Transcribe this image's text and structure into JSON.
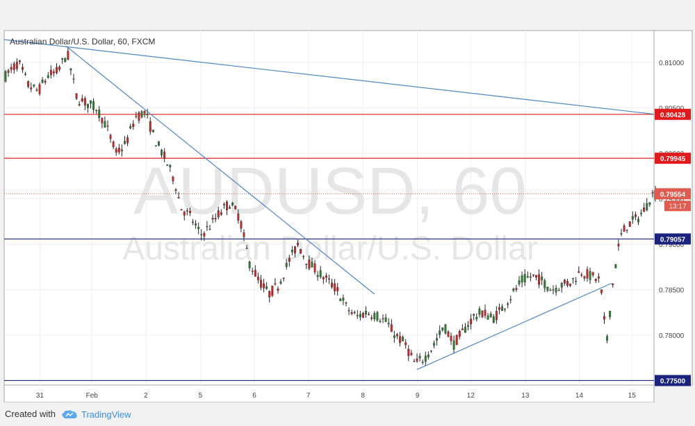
{
  "chart_data": {
    "type": "candlestick",
    "title": "Australian Dollar/U.S. Dollar, 60, FXCM",
    "watermark": {
      "symbol": "AUDUSD, 60",
      "name": "Australian Dollar/U.S. Dollar"
    },
    "x_tick_labels": [
      "31",
      "Feb",
      "2",
      "5",
      "6",
      "7",
      "8",
      "9",
      "12",
      "13",
      "14",
      "15"
    ],
    "y_tick_labels": [
      "0.81000",
      "0.80500",
      "0.80000",
      "0.79500",
      "0.79000",
      "0.78500",
      "0.78000",
      "0.77500"
    ],
    "ylim": [
      0.7745,
      0.8135
    ],
    "horizontal_levels": [
      {
        "value": 0.80428,
        "label": "0.80428",
        "color": "#e31a1c"
      },
      {
        "value": 0.79945,
        "label": "0.79945",
        "color": "#e31a1c"
      },
      {
        "value": 0.79057,
        "label": "0.79057",
        "color": "#1a237e"
      },
      {
        "value": 0.775,
        "label": "0.77500",
        "color": "#1a237e"
      }
    ],
    "current_price": {
      "value": 0.79554,
      "label": "0.79554",
      "countdown": "13:17",
      "color": "#e05a4e"
    },
    "trendlines": [
      {
        "from": [
          0,
          0.8125
        ],
        "to": [
          1,
          0.8043
        ]
      },
      {
        "from": [
          0.095,
          0.8118
        ],
        "to": [
          0.57,
          0.7845
        ]
      },
      {
        "from": [
          0.635,
          0.7762
        ],
        "to": [
          0.935,
          0.7857
        ]
      }
    ],
    "price_path": [
      [
        0.0,
        0.8085
      ],
      [
        0.02,
        0.81
      ],
      [
        0.035,
        0.8075
      ],
      [
        0.05,
        0.8068
      ],
      [
        0.065,
        0.8085
      ],
      [
        0.08,
        0.809
      ],
      [
        0.095,
        0.811
      ],
      [
        0.11,
        0.806
      ],
      [
        0.125,
        0.8055
      ],
      [
        0.14,
        0.805
      ],
      [
        0.155,
        0.803
      ],
      [
        0.17,
        0.8
      ],
      [
        0.185,
        0.801
      ],
      [
        0.2,
        0.804
      ],
      [
        0.215,
        0.8045
      ],
      [
        0.23,
        0.8015
      ],
      [
        0.245,
        0.7995
      ],
      [
        0.26,
        0.797
      ],
      [
        0.27,
        0.794
      ],
      [
        0.285,
        0.793
      ],
      [
        0.3,
        0.791
      ],
      [
        0.315,
        0.792
      ],
      [
        0.33,
        0.7935
      ],
      [
        0.345,
        0.7945
      ],
      [
        0.36,
        0.793
      ],
      [
        0.375,
        0.788
      ],
      [
        0.39,
        0.786
      ],
      [
        0.405,
        0.7845
      ],
      [
        0.42,
        0.7855
      ],
      [
        0.435,
        0.788
      ],
      [
        0.45,
        0.79
      ],
      [
        0.465,
        0.788
      ],
      [
        0.48,
        0.787
      ],
      [
        0.495,
        0.786
      ],
      [
        0.51,
        0.785
      ],
      [
        0.525,
        0.783
      ],
      [
        0.54,
        0.782
      ],
      [
        0.555,
        0.7825
      ],
      [
        0.57,
        0.7822
      ],
      [
        0.585,
        0.7815
      ],
      [
        0.6,
        0.78
      ],
      [
        0.615,
        0.779
      ],
      [
        0.63,
        0.7768
      ],
      [
        0.645,
        0.7775
      ],
      [
        0.66,
        0.779
      ],
      [
        0.675,
        0.781
      ],
      [
        0.69,
        0.779
      ],
      [
        0.705,
        0.7805
      ],
      [
        0.72,
        0.782
      ],
      [
        0.735,
        0.7825
      ],
      [
        0.75,
        0.7818
      ],
      [
        0.765,
        0.783
      ],
      [
        0.78,
        0.7845
      ],
      [
        0.795,
        0.786
      ],
      [
        0.81,
        0.7865
      ],
      [
        0.825,
        0.786
      ],
      [
        0.84,
        0.785
      ],
      [
        0.855,
        0.7855
      ],
      [
        0.87,
        0.7858
      ],
      [
        0.885,
        0.787
      ],
      [
        0.9,
        0.7865
      ],
      [
        0.915,
        0.786
      ],
      [
        0.925,
        0.779
      ],
      [
        0.935,
        0.786
      ],
      [
        0.945,
        0.7905
      ],
      [
        0.955,
        0.792
      ],
      [
        0.965,
        0.7925
      ],
      [
        0.975,
        0.793
      ],
      [
        0.985,
        0.794
      ],
      [
        0.995,
        0.7955
      ]
    ]
  },
  "footer": {
    "created_with": "Created with",
    "brand": "TradingView"
  }
}
